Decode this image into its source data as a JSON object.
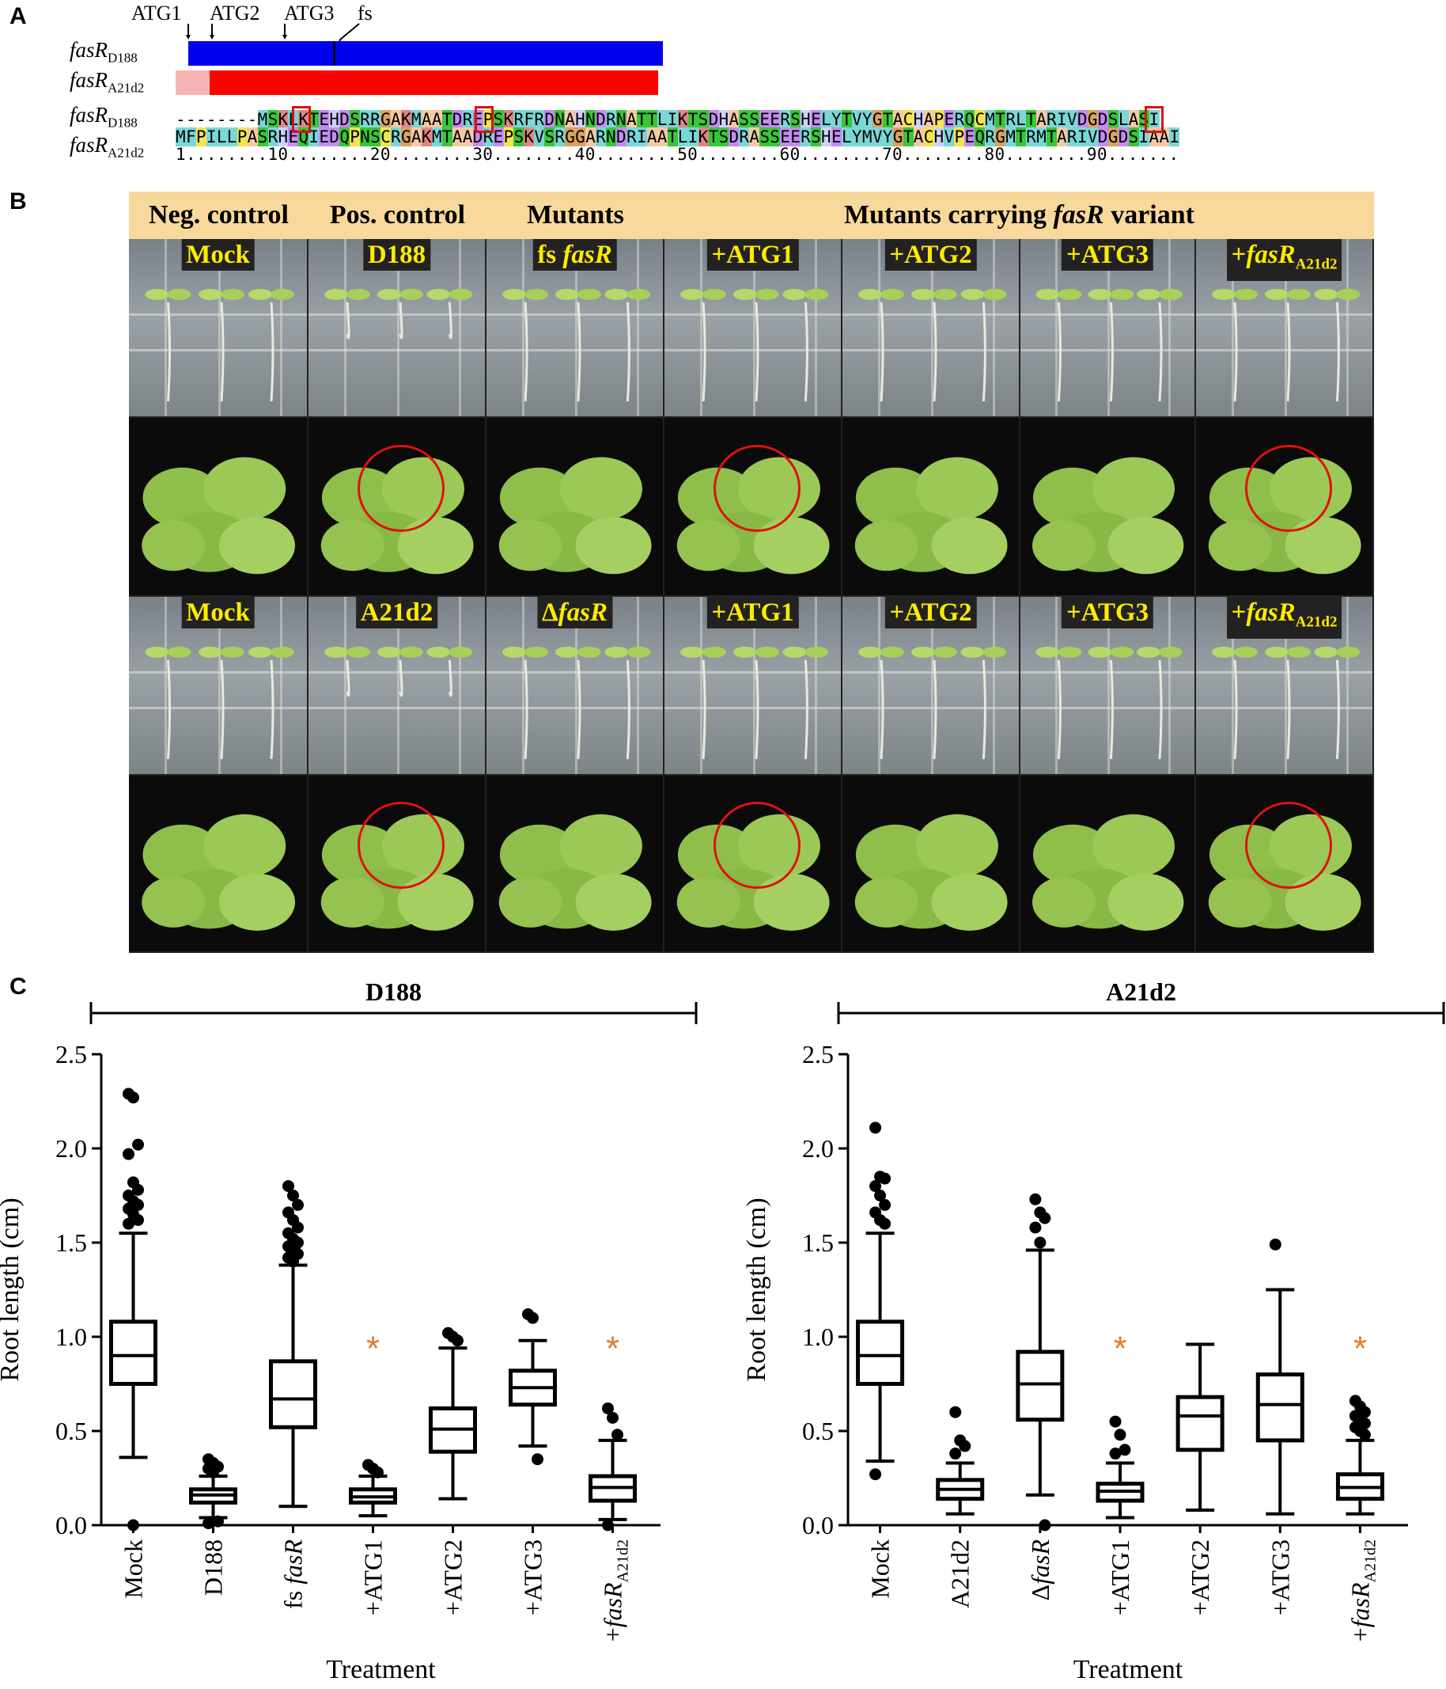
{
  "panel_labels": {
    "a": "A",
    "b": "B",
    "c": "C"
  },
  "panelA": {
    "markers": [
      "ATG1",
      "ATG2",
      "ATG3",
      "fs"
    ],
    "bars": [
      {
        "label_main": "fasR",
        "label_sub": "D188",
        "color": "#0000ee"
      },
      {
        "label_main": "fasR",
        "label_sub": "A21d2",
        "color": "#ff0000",
        "prefix_color": "#f8b4b4"
      }
    ],
    "alignment": {
      "row1_label_main": "fasR",
      "row1_label_sub": "D188",
      "row1_seq": "--------MSKLKTEHDSRRGAKMAATDREPSKRFRDNAHNDRNATTLIKTSDHASSEERSHELYTVYGTACHAPERQCMTRLTARIVDGDSLASI",
      "row2_label_main": "fasR",
      "row2_label_sub": "A21d2",
      "row2_seq": "MFPILLPASRHEQIEDQPNSCRGAKMTAADREPSKVSRGGARNDRIAATLIKTSDRASSEERSHELYMVYGTACHVPEQRGMTRMTARIVDGDSIAAI",
      "ruler": "1........10........20........30........40........50........60........70........80........90......."
    }
  },
  "panelB": {
    "headers": {
      "neg": "Neg. control",
      "pos": "Pos. control",
      "mut": "Mutants",
      "carry_pre": "Mutants carrying ",
      "carry_italic": "fasR",
      "carry_post": " variant"
    },
    "row1_labels": [
      "Mock",
      "D188",
      "fs ",
      "+ATG1",
      "+ATG2",
      "+ATG3",
      "+"
    ],
    "row1_italic": [
      "",
      "",
      "fasR",
      "",
      "",
      "",
      "fasR"
    ],
    "row1_sub": [
      "",
      "",
      "",
      "",
      "",
      "",
      "A21d2"
    ],
    "row3_labels": [
      "Mock",
      "A21d2",
      "Δ",
      "+ATG1",
      "+ATG2",
      "+ATG3",
      "+"
    ],
    "row3_italic": [
      "",
      "",
      "fasR",
      "",
      "",
      "",
      "fasR"
    ],
    "row3_sub": [
      "",
      "",
      "",
      "",
      "",
      "",
      "A21d2"
    ]
  },
  "chart_data": [
    {
      "type": "box",
      "title": "D188",
      "xlabel": "Treatment",
      "ylabel": "Root length (cm)",
      "ylim": [
        0,
        2.5
      ],
      "yticks": [
        "0.0",
        "0.5",
        "1.0",
        "1.5",
        "2.0",
        "2.5"
      ],
      "categories": [
        "Mock",
        "D188",
        "fs fasR",
        "+ATG1",
        "+ATG2",
        "+ATG3",
        "+fasRA21d2"
      ],
      "boxes": [
        {
          "min": 0.36,
          "q1": 0.75,
          "median": 0.9,
          "q3": 1.08,
          "max": 1.55,
          "outliers": [
            2.29,
            2.27,
            2.02,
            1.97,
            1.82,
            1.78,
            1.75,
            1.72,
            1.7,
            1.68,
            1.65,
            1.62,
            1.6,
            0.0
          ]
        },
        {
          "min": 0.04,
          "q1": 0.12,
          "median": 0.16,
          "q3": 0.19,
          "max": 0.26,
          "outliers": [
            0.35,
            0.33,
            0.31,
            0.3,
            0.28,
            0.02,
            0.01
          ]
        },
        {
          "min": 0.1,
          "q1": 0.52,
          "median": 0.67,
          "q3": 0.87,
          "max": 1.38,
          "outliers": [
            1.8,
            1.75,
            1.7,
            1.66,
            1.62,
            1.58,
            1.55,
            1.52,
            1.5,
            1.48,
            1.46,
            1.44,
            1.42,
            1.4
          ]
        },
        {
          "min": 0.05,
          "q1": 0.12,
          "median": 0.15,
          "q3": 0.19,
          "max": 0.26,
          "outliers": [
            0.32,
            0.3,
            0.28
          ]
        },
        {
          "min": 0.14,
          "q1": 0.39,
          "median": 0.51,
          "q3": 0.62,
          "max": 0.94,
          "outliers": [
            1.02,
            1.0,
            0.98
          ]
        },
        {
          "min": 0.42,
          "q1": 0.64,
          "median": 0.73,
          "q3": 0.82,
          "max": 0.98,
          "outliers": [
            1.12,
            1.1,
            0.35
          ]
        },
        {
          "min": 0.03,
          "q1": 0.13,
          "median": 0.2,
          "q3": 0.26,
          "max": 0.45,
          "outliers": [
            0.62,
            0.57,
            0.48,
            0.0
          ]
        }
      ],
      "annotations": [
        {
          "category": "+ATG1",
          "text": "*"
        },
        {
          "category": "+fasRA21d2",
          "text": "*"
        }
      ]
    },
    {
      "type": "box",
      "title": "A21d2",
      "xlabel": "Treatment",
      "ylabel": "Root length (cm)",
      "ylim": [
        0,
        2.5
      ],
      "yticks": [
        "0.0",
        "0.5",
        "1.0",
        "1.5",
        "2.0",
        "2.5"
      ],
      "categories": [
        "Mock",
        "A21d2",
        "ΔfasR",
        "+ATG1",
        "+ATG2",
        "+ATG3",
        "+fasRA21d2"
      ],
      "boxes": [
        {
          "min": 0.34,
          "q1": 0.75,
          "median": 0.9,
          "q3": 1.08,
          "max": 1.55,
          "outliers": [
            2.11,
            1.85,
            1.84,
            1.8,
            1.75,
            1.7,
            1.66,
            1.62,
            1.6,
            0.27
          ]
        },
        {
          "min": 0.06,
          "q1": 0.14,
          "median": 0.19,
          "q3": 0.24,
          "max": 0.33,
          "outliers": [
            0.6,
            0.45,
            0.42,
            0.38
          ]
        },
        {
          "min": 0.16,
          "q1": 0.56,
          "median": 0.75,
          "q3": 0.92,
          "max": 1.46,
          "outliers": [
            1.73,
            1.66,
            1.63,
            1.58,
            1.5,
            0.0
          ]
        },
        {
          "min": 0.04,
          "q1": 0.13,
          "median": 0.18,
          "q3": 0.22,
          "max": 0.33,
          "outliers": [
            0.55,
            0.48,
            0.4,
            0.38
          ]
        },
        {
          "min": 0.08,
          "q1": 0.4,
          "median": 0.58,
          "q3": 0.68,
          "max": 0.96,
          "outliers": []
        },
        {
          "min": 0.06,
          "q1": 0.45,
          "median": 0.64,
          "q3": 0.8,
          "max": 1.25,
          "outliers": [
            1.49
          ]
        },
        {
          "min": 0.06,
          "q1": 0.14,
          "median": 0.2,
          "q3": 0.27,
          "max": 0.45,
          "outliers": [
            0.66,
            0.63,
            0.6,
            0.58,
            0.56,
            0.54,
            0.52,
            0.5,
            0.48
          ]
        }
      ],
      "annotations": [
        {
          "category": "+ATG1",
          "text": "*"
        },
        {
          "category": "+fasRA21d2",
          "text": "*"
        }
      ]
    }
  ],
  "colors": {
    "asterisk": "#e07b39",
    "header_bg": "#f9d99b",
    "cell_label": "#ffea00",
    "circle": "#e01010"
  }
}
